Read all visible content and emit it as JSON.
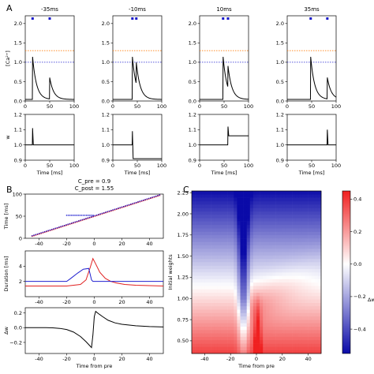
{
  "panel_labels": {
    "a": "A",
    "b": "B",
    "c": "C"
  },
  "chart_data": [
    {
      "id": "A-top",
      "type": "line",
      "titles": [
        "-35ms",
        "-10ms",
        "10ms",
        "35ms"
      ],
      "ylabel": "[Ca²⁺]",
      "xlim": [
        0,
        100
      ],
      "ylim": [
        0,
        2.2
      ],
      "xticks": [
        0,
        50,
        100
      ],
      "yticks": [
        0.0,
        0.5,
        1.0,
        1.5,
        2.0
      ],
      "ytick_labels": [
        "0.0",
        "0.5",
        "1.0",
        "1.5",
        "2.0"
      ],
      "theta_post": {
        "value": 1.3,
        "color": "#ff7f0e"
      },
      "theta_pre": {
        "value": 1.0,
        "color": "#1f1fd0"
      },
      "spike_color": "#1414c8",
      "series": [
        {
          "pre": 15,
          "post": 50
        },
        {
          "pre": 40,
          "post": 48
        },
        {
          "pre": 48,
          "post": 58
        },
        {
          "pre": 48,
          "post": 82
        }
      ]
    },
    {
      "id": "A-bottom",
      "type": "line",
      "xlabel": "Time [ms]",
      "ylabel": "w",
      "xlim": [
        0,
        100
      ],
      "ylim": [
        0.9,
        1.2
      ],
      "xticks": [
        0,
        50,
        100
      ],
      "yticks": [
        0.9,
        1.0,
        1.1,
        1.2
      ],
      "ytick_labels": [
        "0.9",
        "1.0",
        "1.1",
        "1.2"
      ],
      "series": [
        {
          "t": 15,
          "peak": 1.11,
          "final": 1.0
        },
        {
          "t": 40,
          "peak": 1.09,
          "final": 0.91
        },
        {
          "t": 58,
          "peak": 1.12,
          "final": 1.06
        },
        {
          "t": 82,
          "peak": 1.1,
          "final": 1.0
        }
      ]
    },
    {
      "id": "B-raster",
      "type": "scatter",
      "title": "C_pre = 0.9\nC_post = 1.55",
      "title_lines": [
        "C_pre = 0.9",
        "C_post = 1.55"
      ],
      "ylabel": "Time [ms]",
      "xlim": [
        -50,
        50
      ],
      "ylim": [
        0,
        100
      ],
      "xticks": [
        -40,
        -20,
        0,
        20,
        40
      ],
      "yticks": [
        0,
        50,
        100
      ],
      "colors": {
        "pre": "#e02020",
        "post": "#2020d0"
      }
    },
    {
      "id": "B-duration",
      "type": "line",
      "ylabel": "Duration [ms]",
      "xlim": [
        -50,
        50
      ],
      "ylim": [
        0,
        6
      ],
      "xticks": [
        -40,
        -20,
        0,
        20,
        40
      ],
      "yticks": [
        2,
        4
      ],
      "series": [
        {
          "color": "#e02020",
          "points": [
            [
              -50,
              1.4
            ],
            [
              -20,
              1.4
            ],
            [
              -10,
              1.6
            ],
            [
              -6,
              2.2
            ],
            [
              -3,
              3.8
            ],
            [
              -1,
              5.0
            ],
            [
              1,
              4.3
            ],
            [
              4,
              3.2
            ],
            [
              8,
              2.4
            ],
            [
              12,
              2.0
            ],
            [
              16,
              1.8
            ],
            [
              22,
              1.6
            ],
            [
              30,
              1.5
            ],
            [
              50,
              1.4
            ]
          ]
        },
        {
          "color": "#2020d0",
          "points": [
            [
              -50,
              2.0
            ],
            [
              -20,
              2.0
            ],
            [
              -17,
              2.4
            ],
            [
              -12,
              3.1
            ],
            [
              -8,
              3.6
            ],
            [
              -4,
              3.7
            ],
            [
              -2,
              2.2
            ],
            [
              -1,
              2.0
            ],
            [
              50,
              2.0
            ]
          ]
        }
      ]
    },
    {
      "id": "B-dw",
      "type": "line",
      "xlabel": "Time from pre",
      "ylabel": "Δw",
      "xlim": [
        -50,
        50
      ],
      "ylim": [
        -0.35,
        0.27
      ],
      "xticks": [
        -40,
        -20,
        0,
        20,
        40
      ],
      "yticks": [
        -0.2,
        0.0,
        0.2
      ],
      "ytick_labels": [
        "−0.2",
        "0.0",
        "0.2"
      ],
      "series": [
        {
          "color": "#000000",
          "points": [
            [
              -50,
              0.0
            ],
            [
              -35,
              0.0
            ],
            [
              -30,
              -0.003
            ],
            [
              -25,
              -0.01
            ],
            [
              -20,
              -0.025
            ],
            [
              -15,
              -0.06
            ],
            [
              -10,
              -0.12
            ],
            [
              -6,
              -0.19
            ],
            [
              -3,
              -0.25
            ],
            [
              -2,
              -0.27
            ],
            [
              -1,
              -0.1
            ],
            [
              0,
              0.15
            ],
            [
              1,
              0.22
            ],
            [
              3,
              0.19
            ],
            [
              6,
              0.15
            ],
            [
              10,
              0.1
            ],
            [
              15,
              0.065
            ],
            [
              20,
              0.045
            ],
            [
              30,
              0.025
            ],
            [
              40,
              0.015
            ],
            [
              50,
              0.01
            ]
          ]
        }
      ]
    },
    {
      "id": "C-heatmap",
      "type": "heatmap",
      "xlabel": "Time from pre",
      "ylabel": "Initial weights",
      "xlim": [
        -50,
        50
      ],
      "ylim": [
        0.35,
        2.27
      ],
      "xticks": [
        -40,
        -20,
        0,
        20,
        40
      ],
      "yticks": [
        0.5,
        0.75,
        1.0,
        1.25,
        1.5,
        1.75,
        2.0,
        2.25
      ],
      "ytick_labels": [
        "0.50",
        "0.75",
        "1.00",
        "1.25",
        "1.50",
        "1.75",
        "2.00",
        "2.25"
      ],
      "colorbar": {
        "label": "Δw",
        "range": [
          -0.55,
          0.45
        ],
        "ticks": [
          0.4,
          0.2,
          0.0,
          -0.2,
          -0.4
        ],
        "tick_labels": [
          "0.4",
          "0.2",
          "0.0",
          "−0.2",
          "−0.4"
        ]
      }
    }
  ]
}
